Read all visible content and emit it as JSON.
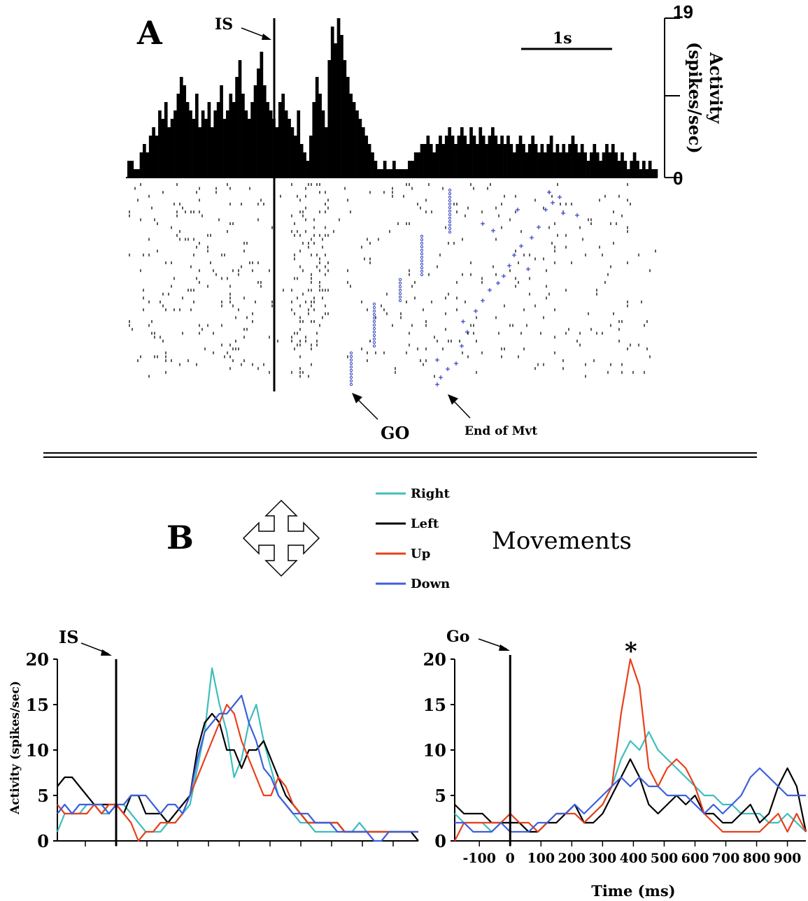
{
  "panel_a": {
    "label": "A",
    "is_label": "IS",
    "scale_bar_label": "1s",
    "ylabel_line1": "Activity",
    "ylabel_line2": "(spikes/sec)",
    "ytick_top": "19",
    "ytick_bottom": "0",
    "go_label": "GO",
    "end_mvt_label": "End of Mvt"
  },
  "panel_b": {
    "label": "B",
    "movements_label": "Movements",
    "legend": [
      {
        "name": "Right",
        "color": "#3fbdbd"
      },
      {
        "name": "Left",
        "color": "#000000"
      },
      {
        "name": "Up",
        "color": "#e8401a"
      },
      {
        "name": "Down",
        "color": "#3c5fdc"
      }
    ],
    "left_event_label": "IS",
    "right_event_label": "Go",
    "asterisk": "*"
  },
  "chart_data": [
    {
      "type": "bar",
      "description_role": "histogram",
      "ylabel": "Activity (spikes/sec)",
      "ylim": [
        0,
        19
      ],
      "yticks": [
        "19",
        "0"
      ],
      "event": "IS",
      "values": [
        2,
        2,
        1,
        1,
        3,
        4,
        3,
        5,
        6,
        5,
        8,
        7,
        9,
        6,
        7,
        8,
        10,
        12,
        11,
        9,
        8,
        7,
        10,
        6,
        8,
        7,
        9,
        6,
        8,
        9,
        11,
        7,
        8,
        10,
        9,
        12,
        14,
        10,
        8,
        7,
        9,
        11,
        13,
        15,
        11,
        9,
        8,
        7,
        6,
        9,
        10,
        8,
        7,
        6,
        5,
        8,
        4,
        3,
        2,
        5,
        9,
        12,
        10,
        8,
        6,
        14,
        18,
        16,
        19,
        17,
        14,
        12,
        10,
        9,
        8,
        7,
        6,
        5,
        4,
        3,
        2,
        1,
        1,
        2,
        1,
        1,
        2,
        1,
        1,
        1,
        1,
        2,
        2,
        3,
        3,
        4,
        4,
        5,
        4,
        3,
        4,
        5,
        4,
        5,
        6,
        5,
        4,
        5,
        6,
        5,
        4,
        6,
        5,
        4,
        6,
        5,
        4,
        5,
        6,
        5,
        4,
        5,
        4,
        5,
        4,
        3,
        4,
        5,
        4,
        3,
        4,
        5,
        4,
        3,
        4,
        3,
        4,
        5,
        3,
        4,
        3,
        4,
        3,
        4,
        5,
        4,
        3,
        4,
        3,
        2,
        3,
        4,
        3,
        2,
        3,
        4,
        3,
        4,
        3,
        2,
        3,
        2,
        1,
        2,
        3,
        2,
        1,
        2,
        1,
        2,
        1,
        1
      ]
    },
    {
      "type": "line",
      "ylabel": "Activity (spikes/sec)",
      "ylim": [
        0,
        20
      ],
      "yticks": [
        0,
        5,
        10,
        15,
        20
      ],
      "event": "IS",
      "x_points": 50,
      "series": [
        {
          "name": "Right",
          "values": [
            1,
            3,
            3,
            3,
            4,
            4,
            3,
            3,
            4,
            4,
            3,
            2,
            1,
            1,
            1,
            2,
            2,
            3,
            4,
            8,
            12,
            19,
            15,
            12,
            7,
            9,
            13,
            15,
            11,
            8,
            5,
            4,
            3,
            2,
            2,
            1,
            1,
            1,
            1,
            1,
            1,
            2,
            1,
            1,
            1,
            1,
            1,
            1,
            1,
            1
          ]
        },
        {
          "name": "Left",
          "values": [
            6,
            7,
            7,
            6,
            5,
            4,
            4,
            4,
            4,
            3,
            5,
            5,
            3,
            3,
            3,
            2,
            3,
            4,
            5,
            10,
            13,
            14,
            13,
            10,
            10,
            8,
            10,
            10,
            11,
            9,
            7,
            5,
            4,
            3,
            2,
            2,
            2,
            2,
            2,
            1,
            1,
            1,
            1,
            1,
            1,
            1,
            1,
            1,
            1,
            0
          ]
        },
        {
          "name": "Up",
          "values": [
            4,
            3,
            3,
            3,
            3,
            4,
            3,
            4,
            4,
            3,
            2,
            0,
            1,
            1,
            2,
            2,
            2,
            3,
            5,
            7,
            9,
            11,
            13,
            15,
            14,
            11,
            9,
            7,
            5,
            5,
            7,
            6,
            4,
            3,
            2,
            2,
            2,
            2,
            2,
            1,
            1,
            1,
            1,
            1,
            1,
            1,
            1,
            1,
            1,
            1
          ]
        },
        {
          "name": "Down",
          "values": [
            3,
            4,
            3,
            4,
            4,
            4,
            4,
            3,
            4,
            4,
            5,
            5,
            5,
            4,
            3,
            4,
            4,
            3,
            5,
            9,
            12,
            13,
            14,
            14,
            15,
            16,
            13,
            11,
            8,
            7,
            5,
            4,
            3,
            3,
            3,
            2,
            2,
            2,
            1,
            1,
            1,
            1,
            1,
            0,
            0,
            1,
            1,
            1,
            1,
            1
          ]
        }
      ]
    },
    {
      "type": "line",
      "xlabel": "Time (ms)",
      "xlim": [
        -180,
        960
      ],
      "xticks": [
        -100,
        0,
        100,
        200,
        300,
        400,
        500,
        600,
        700,
        800,
        900
      ],
      "ylim": [
        0,
        20
      ],
      "yticks": [
        0,
        5,
        10,
        15,
        20
      ],
      "event": "Go",
      "x": [
        -180,
        -150,
        -120,
        -90,
        -60,
        -30,
        0,
        30,
        60,
        90,
        120,
        150,
        180,
        210,
        240,
        270,
        300,
        330,
        360,
        390,
        420,
        450,
        480,
        510,
        540,
        570,
        600,
        630,
        660,
        690,
        720,
        750,
        780,
        810,
        840,
        870,
        900,
        930,
        960
      ],
      "series": [
        {
          "name": "Right",
          "values": [
            3,
            2,
            2,
            2,
            1,
            2,
            3,
            2,
            1,
            1,
            2,
            3,
            3,
            4,
            2,
            3,
            4,
            6,
            9,
            11,
            10,
            12,
            10,
            9,
            8,
            7,
            6,
            5,
            5,
            4,
            4,
            3,
            3,
            3,
            2,
            2,
            3,
            2,
            1
          ]
        },
        {
          "name": "Left",
          "values": [
            4,
            3,
            3,
            3,
            2,
            2,
            2,
            2,
            1,
            1,
            2,
            2,
            3,
            4,
            2,
            2,
            3,
            5,
            7,
            9,
            7,
            4,
            3,
            4,
            5,
            4,
            5,
            3,
            3,
            2,
            2,
            3,
            4,
            2,
            3,
            6,
            8,
            6,
            1
          ]
        },
        {
          "name": "Up",
          "values": [
            0,
            2,
            2,
            2,
            2,
            2,
            3,
            2,
            2,
            1,
            2,
            3,
            3,
            3,
            2,
            3,
            4,
            6,
            14,
            20,
            17,
            8,
            6,
            8,
            9,
            8,
            6,
            3,
            2,
            1,
            1,
            1,
            1,
            1,
            2,
            3,
            1,
            3,
            1
          ]
        },
        {
          "name": "Down",
          "values": [
            2,
            2,
            1,
            1,
            1,
            2,
            1,
            1,
            1,
            2,
            2,
            3,
            3,
            4,
            3,
            4,
            5,
            6,
            7,
            6,
            7,
            6,
            6,
            5,
            5,
            5,
            4,
            3,
            4,
            3,
            4,
            5,
            7,
            8,
            7,
            6,
            5,
            5,
            5
          ]
        }
      ]
    }
  ]
}
